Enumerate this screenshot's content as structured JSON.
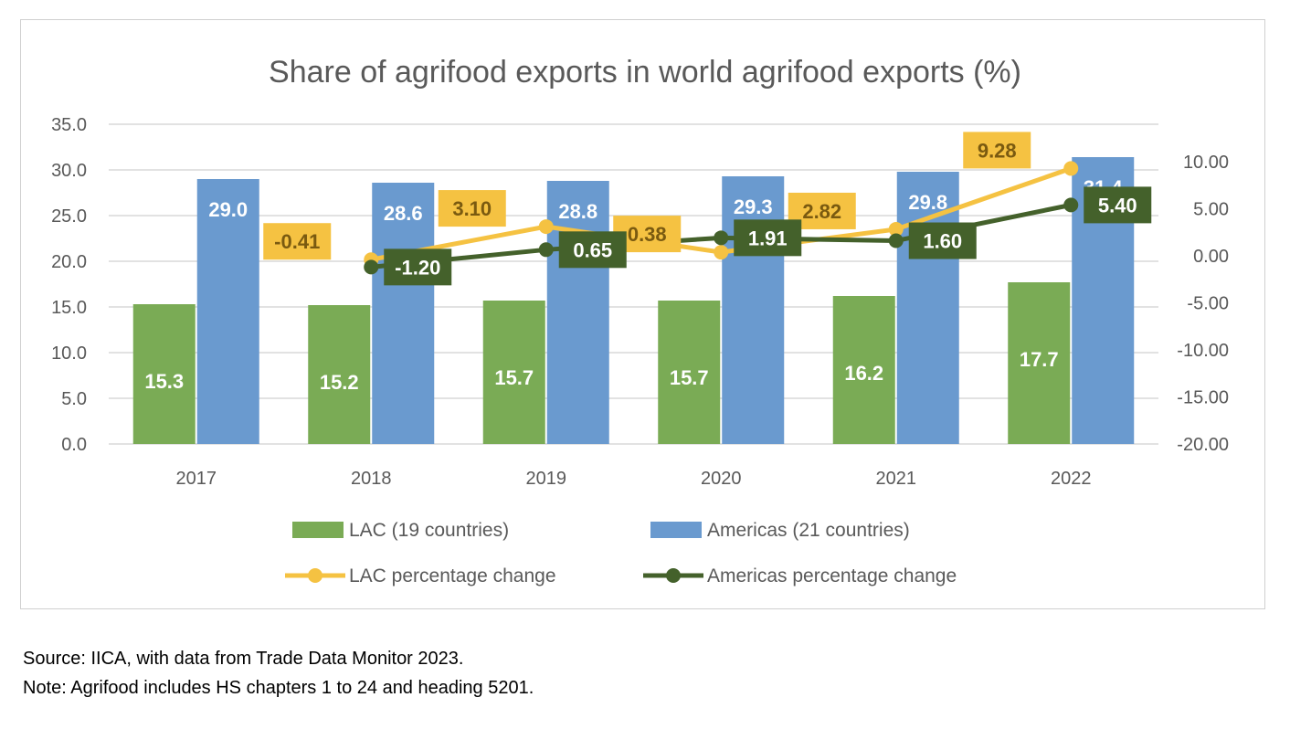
{
  "chart_data": {
    "type": "bar+line",
    "title": "Share of agrifood exports in world agrifood exports (%)",
    "categories": [
      "2017",
      "2018",
      "2019",
      "2020",
      "2021",
      "2022"
    ],
    "y_left": {
      "range": [
        0,
        35
      ],
      "ticks": [
        "0.0",
        "5.0",
        "10.0",
        "15.0",
        "20.0",
        "25.0",
        "30.0",
        "35.0"
      ]
    },
    "y_right": {
      "range": [
        -20,
        10
      ],
      "ticks": [
        "-20.00",
        "-15.00",
        "-10.00",
        "-5.00",
        "0.00",
        "5.00",
        "10.00"
      ]
    },
    "bar_series": [
      {
        "name": "LAC (19 countries)",
        "color": "#7aab55",
        "values": [
          15.3,
          15.2,
          15.7,
          15.7,
          16.2,
          17.7
        ],
        "labels": [
          "15.3",
          "15.2",
          "15.7",
          "15.7",
          "16.2",
          "17.7"
        ]
      },
      {
        "name": "Americas (21 countries)",
        "color": "#6a9acf",
        "values": [
          29.0,
          28.6,
          28.8,
          29.3,
          29.8,
          31.4
        ],
        "labels": [
          "29.0",
          "28.6",
          "28.8",
          "29.3",
          "29.8",
          "31.4"
        ]
      }
    ],
    "line_series": [
      {
        "name": "LAC percentage change",
        "color": "#f5c242",
        "label_text": "#7a5a10",
        "values": [
          null,
          -0.41,
          3.1,
          0.38,
          2.82,
          9.28
        ],
        "labels": [
          "",
          "-0.41",
          "3.10",
          "0.38",
          "2.82",
          "9.28"
        ]
      },
      {
        "name": "Americas percentage change",
        "color": "#44612b",
        "label_text": "#ffffff",
        "values": [
          null,
          -1.2,
          0.65,
          1.91,
          1.6,
          5.4
        ],
        "labels": [
          "",
          "-1.20",
          "0.65",
          "1.91",
          "1.60",
          "5.40"
        ]
      }
    ],
    "legend_position": "bottom",
    "grid": true
  },
  "notes": {
    "source": "Source: IICA, with data from Trade Data Monitor 2023.",
    "note": "Note: Agrifood includes HS chapters 1 to 24 and heading 5201."
  }
}
